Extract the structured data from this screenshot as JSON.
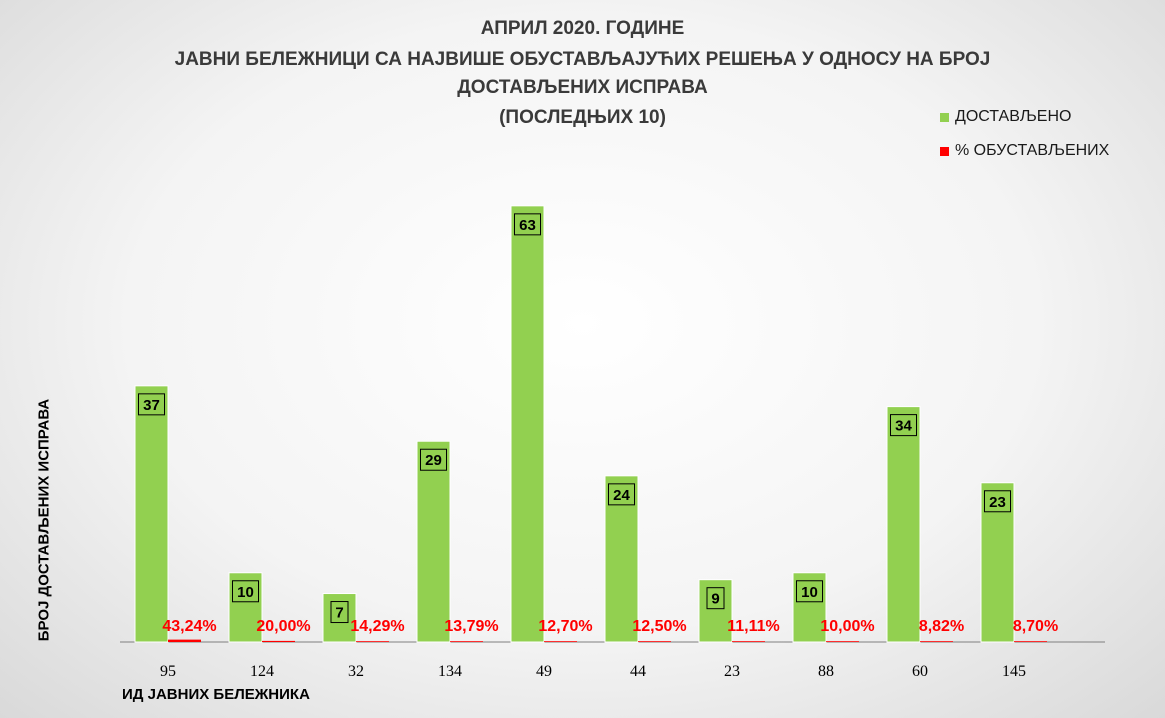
{
  "chart_data": {
    "type": "bar",
    "title": [
      "АПРИЛ 2020. ГОДИНЕ",
      "ЈАВНИ БЕЛЕЖНИЦИ СА НАЈВИШЕ ОБУСТАВЉАЈУЋИХ РЕШЕЊА У ОДНОСУ  НА БРОЈ",
      "ДОСТАВЉЕНИХ ИСПРАВА",
      "(ПОСЛЕДЊИХ 10)"
    ],
    "xlabel": "ИД ЈАВНИХ БЕЛЕЖНИКА",
    "ylabel": "БРОЈ ДОСТАВЉЕНИХ ИСПРАВА",
    "categories": [
      "95",
      "124",
      "32",
      "134",
      "49",
      "44",
      "23",
      "88",
      "60",
      "145"
    ],
    "ylim": [
      0,
      70
    ],
    "grid": false,
    "legend_position": "top-right",
    "series": [
      {
        "name": "ДОСТАВЉЕНО",
        "color": "#92d050",
        "values": [
          37,
          10,
          7,
          29,
          63,
          24,
          9,
          10,
          34,
          23
        ],
        "labels": [
          "37",
          "10",
          "7",
          "29",
          "63",
          "24",
          "9",
          "10",
          "34",
          "23"
        ]
      },
      {
        "name": "% ОБУСТАВЉЕНИХ",
        "color": "#ff0000",
        "values": [
          0.4324,
          0.2,
          0.1429,
          0.1379,
          0.127,
          0.125,
          0.1111,
          0.1,
          0.0882,
          0.087
        ],
        "labels": [
          "43,24%",
          "20,00%",
          "14,29%",
          "13,79%",
          "12,70%",
          "12,50%",
          "11,11%",
          "10,00%",
          "8,82%",
          "8,70%"
        ]
      }
    ]
  }
}
